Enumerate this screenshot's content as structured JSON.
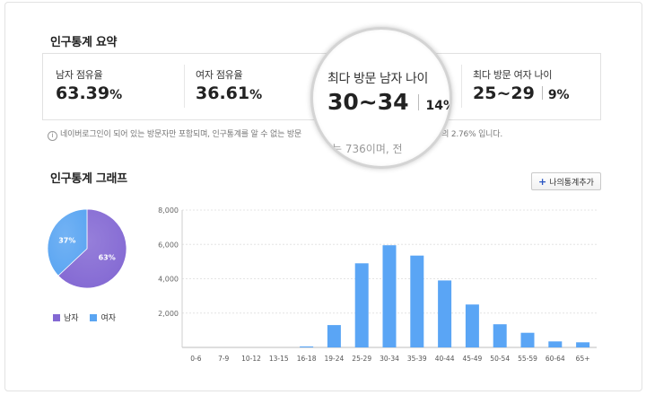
{
  "summary": {
    "title": "인구통계 요약",
    "male_share": {
      "label": "남자 점유율",
      "value": "63.39",
      "unit": "%"
    },
    "female_share": {
      "label": "여자 점유율",
      "value": "36.61",
      "unit": "%"
    },
    "top_male_age": {
      "label": "최다 방문 남자 나이",
      "value": "30~34",
      "percent": "14%"
    },
    "top_female_age": {
      "label": "최다 방문 여자 나이",
      "value": "25~29",
      "percent": "9%"
    },
    "note": "네이버로그인이 되어 있는 방문자만 포함되며, 인구통계를 알 수 없는 방문",
    "note_tail": "자의 2.76% 입니다.",
    "magnifier_note": "수는 736이며, 전"
  },
  "graph": {
    "title": "인구통계 그래프",
    "add_button": {
      "plus": "+",
      "label": "나의통계추가"
    }
  },
  "colors": {
    "male": "#8368d3",
    "female": "#5aa5f2",
    "bar": "#5aa5f5",
    "accent_plus": "#2a55c2"
  },
  "chart_data": [
    {
      "type": "pie",
      "slices": [
        {
          "name": "남자",
          "value": 63,
          "label": "63%"
        },
        {
          "name": "여자",
          "value": 37,
          "label": "37%"
        }
      ],
      "legend": [
        "남자",
        "여자"
      ],
      "legend_position": "bottom"
    },
    {
      "type": "bar",
      "categories": [
        "0-6",
        "7-9",
        "10-12",
        "13-15",
        "16-18",
        "19-24",
        "25-29",
        "30-34",
        "35-39",
        "40-44",
        "45-49",
        "50-54",
        "55-59",
        "60-64",
        "65+"
      ],
      "values": [
        0,
        0,
        0,
        0,
        60,
        1300,
        4900,
        5950,
        5350,
        3900,
        2500,
        1350,
        850,
        350,
        300
      ],
      "yticks": [
        "0",
        "2,000",
        "4,000",
        "6,000",
        "8,000"
      ],
      "ylim": [
        0,
        8000
      ],
      "grid": true
    }
  ]
}
